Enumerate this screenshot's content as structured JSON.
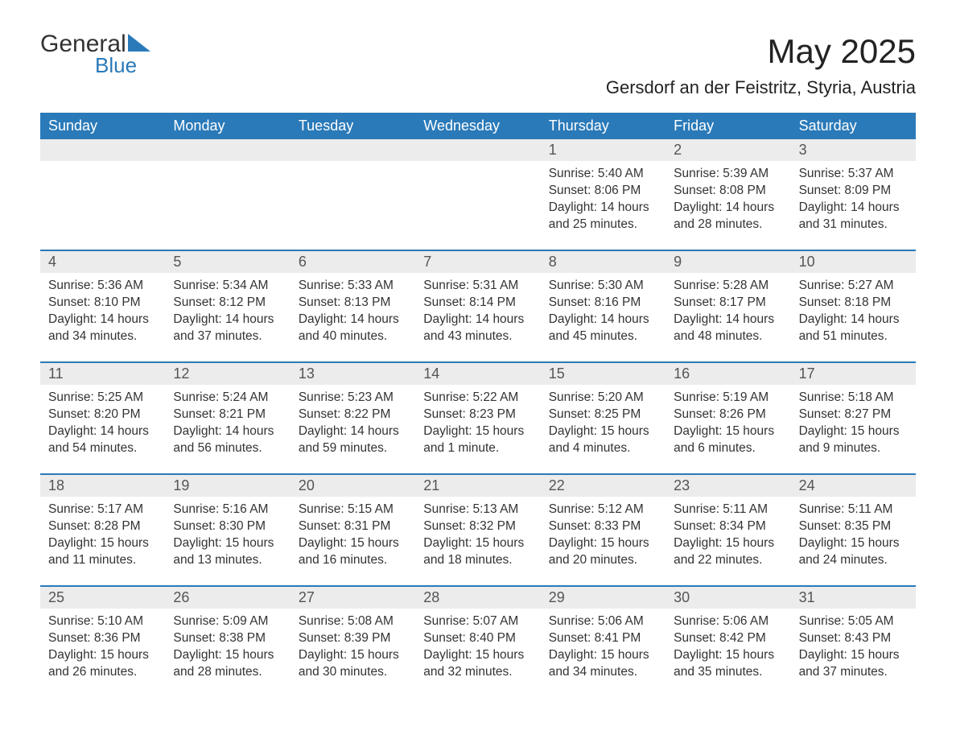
{
  "brand": {
    "main": "General",
    "sub": "Blue"
  },
  "title": "May 2025",
  "location": "Gersdorf an der Feistritz, Styria, Austria",
  "colors": {
    "header_bg": "#2a7ab9",
    "header_text": "#ffffff",
    "daynum_bg": "#ececec",
    "week_border": "#2a7ab9",
    "body_text": "#333333",
    "brand_accent": "#2a7ab9",
    "background": "#ffffff"
  },
  "layout": {
    "columns": 7,
    "rows": 5,
    "title_fontsize": 42,
    "location_fontsize": 22,
    "weekday_fontsize": 18,
    "cell_fontsize": 15.5
  },
  "weekdays": [
    "Sunday",
    "Monday",
    "Tuesday",
    "Wednesday",
    "Thursday",
    "Friday",
    "Saturday"
  ],
  "weeks": [
    [
      {
        "day": "",
        "sunrise": "",
        "sunset": "",
        "daylight": ""
      },
      {
        "day": "",
        "sunrise": "",
        "sunset": "",
        "daylight": ""
      },
      {
        "day": "",
        "sunrise": "",
        "sunset": "",
        "daylight": ""
      },
      {
        "day": "",
        "sunrise": "",
        "sunset": "",
        "daylight": ""
      },
      {
        "day": "1",
        "sunrise": "Sunrise: 5:40 AM",
        "sunset": "Sunset: 8:06 PM",
        "daylight": "Daylight: 14 hours and 25 minutes."
      },
      {
        "day": "2",
        "sunrise": "Sunrise: 5:39 AM",
        "sunset": "Sunset: 8:08 PM",
        "daylight": "Daylight: 14 hours and 28 minutes."
      },
      {
        "day": "3",
        "sunrise": "Sunrise: 5:37 AM",
        "sunset": "Sunset: 8:09 PM",
        "daylight": "Daylight: 14 hours and 31 minutes."
      }
    ],
    [
      {
        "day": "4",
        "sunrise": "Sunrise: 5:36 AM",
        "sunset": "Sunset: 8:10 PM",
        "daylight": "Daylight: 14 hours and 34 minutes."
      },
      {
        "day": "5",
        "sunrise": "Sunrise: 5:34 AM",
        "sunset": "Sunset: 8:12 PM",
        "daylight": "Daylight: 14 hours and 37 minutes."
      },
      {
        "day": "6",
        "sunrise": "Sunrise: 5:33 AM",
        "sunset": "Sunset: 8:13 PM",
        "daylight": "Daylight: 14 hours and 40 minutes."
      },
      {
        "day": "7",
        "sunrise": "Sunrise: 5:31 AM",
        "sunset": "Sunset: 8:14 PM",
        "daylight": "Daylight: 14 hours and 43 minutes."
      },
      {
        "day": "8",
        "sunrise": "Sunrise: 5:30 AM",
        "sunset": "Sunset: 8:16 PM",
        "daylight": "Daylight: 14 hours and 45 minutes."
      },
      {
        "day": "9",
        "sunrise": "Sunrise: 5:28 AM",
        "sunset": "Sunset: 8:17 PM",
        "daylight": "Daylight: 14 hours and 48 minutes."
      },
      {
        "day": "10",
        "sunrise": "Sunrise: 5:27 AM",
        "sunset": "Sunset: 8:18 PM",
        "daylight": "Daylight: 14 hours and 51 minutes."
      }
    ],
    [
      {
        "day": "11",
        "sunrise": "Sunrise: 5:25 AM",
        "sunset": "Sunset: 8:20 PM",
        "daylight": "Daylight: 14 hours and 54 minutes."
      },
      {
        "day": "12",
        "sunrise": "Sunrise: 5:24 AM",
        "sunset": "Sunset: 8:21 PM",
        "daylight": "Daylight: 14 hours and 56 minutes."
      },
      {
        "day": "13",
        "sunrise": "Sunrise: 5:23 AM",
        "sunset": "Sunset: 8:22 PM",
        "daylight": "Daylight: 14 hours and 59 minutes."
      },
      {
        "day": "14",
        "sunrise": "Sunrise: 5:22 AM",
        "sunset": "Sunset: 8:23 PM",
        "daylight": "Daylight: 15 hours and 1 minute."
      },
      {
        "day": "15",
        "sunrise": "Sunrise: 5:20 AM",
        "sunset": "Sunset: 8:25 PM",
        "daylight": "Daylight: 15 hours and 4 minutes."
      },
      {
        "day": "16",
        "sunrise": "Sunrise: 5:19 AM",
        "sunset": "Sunset: 8:26 PM",
        "daylight": "Daylight: 15 hours and 6 minutes."
      },
      {
        "day": "17",
        "sunrise": "Sunrise: 5:18 AM",
        "sunset": "Sunset: 8:27 PM",
        "daylight": "Daylight: 15 hours and 9 minutes."
      }
    ],
    [
      {
        "day": "18",
        "sunrise": "Sunrise: 5:17 AM",
        "sunset": "Sunset: 8:28 PM",
        "daylight": "Daylight: 15 hours and 11 minutes."
      },
      {
        "day": "19",
        "sunrise": "Sunrise: 5:16 AM",
        "sunset": "Sunset: 8:30 PM",
        "daylight": "Daylight: 15 hours and 13 minutes."
      },
      {
        "day": "20",
        "sunrise": "Sunrise: 5:15 AM",
        "sunset": "Sunset: 8:31 PM",
        "daylight": "Daylight: 15 hours and 16 minutes."
      },
      {
        "day": "21",
        "sunrise": "Sunrise: 5:13 AM",
        "sunset": "Sunset: 8:32 PM",
        "daylight": "Daylight: 15 hours and 18 minutes."
      },
      {
        "day": "22",
        "sunrise": "Sunrise: 5:12 AM",
        "sunset": "Sunset: 8:33 PM",
        "daylight": "Daylight: 15 hours and 20 minutes."
      },
      {
        "day": "23",
        "sunrise": "Sunrise: 5:11 AM",
        "sunset": "Sunset: 8:34 PM",
        "daylight": "Daylight: 15 hours and 22 minutes."
      },
      {
        "day": "24",
        "sunrise": "Sunrise: 5:11 AM",
        "sunset": "Sunset: 8:35 PM",
        "daylight": "Daylight: 15 hours and 24 minutes."
      }
    ],
    [
      {
        "day": "25",
        "sunrise": "Sunrise: 5:10 AM",
        "sunset": "Sunset: 8:36 PM",
        "daylight": "Daylight: 15 hours and 26 minutes."
      },
      {
        "day": "26",
        "sunrise": "Sunrise: 5:09 AM",
        "sunset": "Sunset: 8:38 PM",
        "daylight": "Daylight: 15 hours and 28 minutes."
      },
      {
        "day": "27",
        "sunrise": "Sunrise: 5:08 AM",
        "sunset": "Sunset: 8:39 PM",
        "daylight": "Daylight: 15 hours and 30 minutes."
      },
      {
        "day": "28",
        "sunrise": "Sunrise: 5:07 AM",
        "sunset": "Sunset: 8:40 PM",
        "daylight": "Daylight: 15 hours and 32 minutes."
      },
      {
        "day": "29",
        "sunrise": "Sunrise: 5:06 AM",
        "sunset": "Sunset: 8:41 PM",
        "daylight": "Daylight: 15 hours and 34 minutes."
      },
      {
        "day": "30",
        "sunrise": "Sunrise: 5:06 AM",
        "sunset": "Sunset: 8:42 PM",
        "daylight": "Daylight: 15 hours and 35 minutes."
      },
      {
        "day": "31",
        "sunrise": "Sunrise: 5:05 AM",
        "sunset": "Sunset: 8:43 PM",
        "daylight": "Daylight: 15 hours and 37 minutes."
      }
    ]
  ]
}
